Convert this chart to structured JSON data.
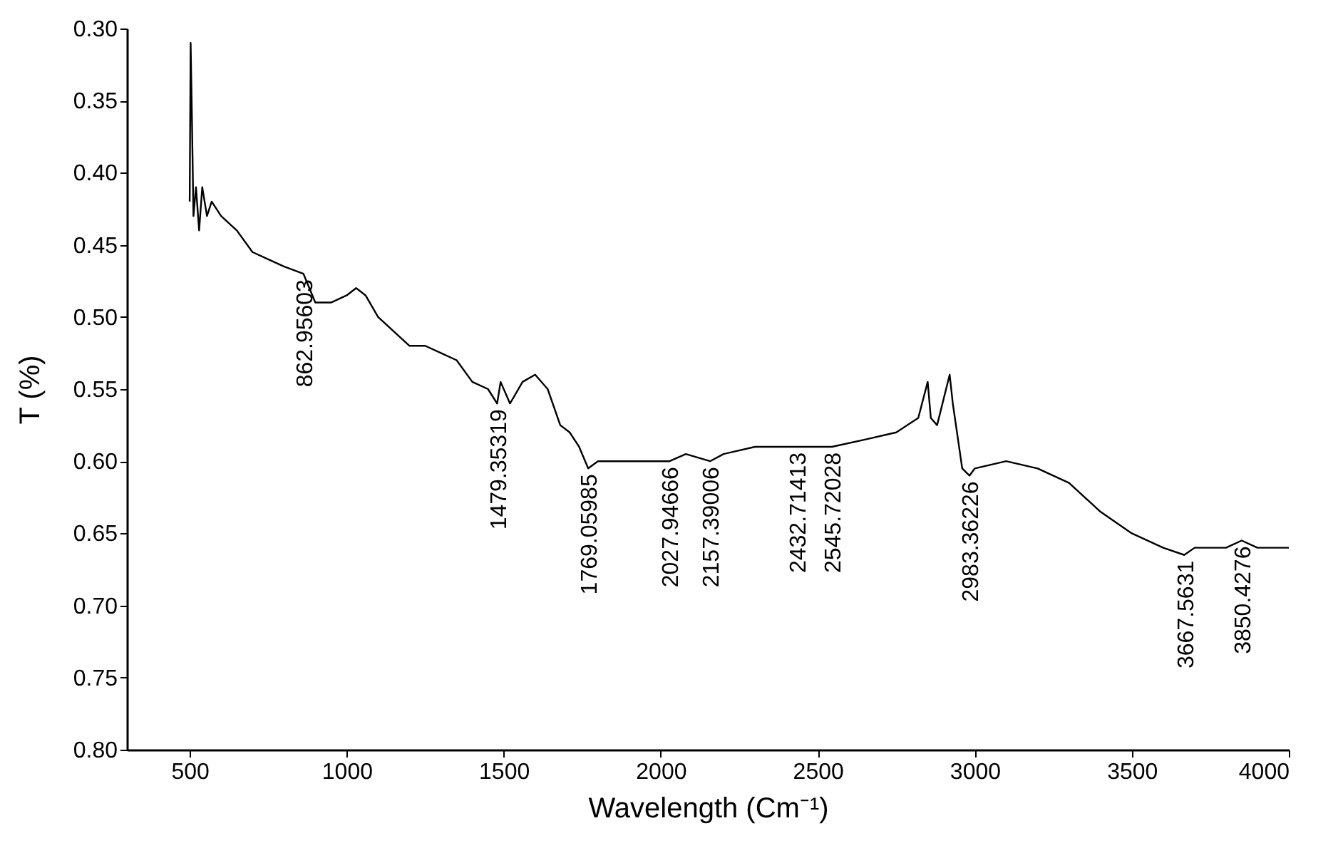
{
  "chart_data": {
    "type": "line",
    "xlabel": "Wavelength (Cm⁻¹)",
    "ylabel": "T (%)",
    "xlim": [
      300,
      4000
    ],
    "xticks": [
      500,
      1000,
      1500,
      2000,
      2500,
      3000,
      3500,
      4000
    ],
    "ylim": [
      0.8,
      0.3
    ],
    "yticks": [
      {
        "value": 0.3,
        "label": "0.30"
      },
      {
        "value": 0.35,
        "label": "0.35"
      },
      {
        "value": 0.4,
        "label": "0.40"
      },
      {
        "value": 0.45,
        "label": "0.45"
      },
      {
        "value": 0.5,
        "label": "0.50"
      },
      {
        "value": 0.55,
        "label": "0.55"
      },
      {
        "value": 0.6,
        "label": "0.60"
      },
      {
        "value": 0.65,
        "label": "0.65"
      },
      {
        "value": 0.7,
        "label": "0.70"
      },
      {
        "value": 0.75,
        "label": "0.75"
      },
      {
        "value": 0.8,
        "label": "0.80"
      }
    ],
    "grid": false,
    "marker": "none",
    "line_style": "solid",
    "series": [
      {
        "color": "#000000",
        "x": [
          500,
          503,
          507,
          512,
          520,
          530,
          540,
          555,
          570,
          600,
          650,
          700,
          750,
          800,
          862,
          900,
          950,
          1000,
          1030,
          1060,
          1100,
          1150,
          1200,
          1250,
          1300,
          1350,
          1400,
          1450,
          1479,
          1490,
          1520,
          1560,
          1600,
          1640,
          1680,
          1710,
          1740,
          1769,
          1800,
          1900,
          2000,
          2028,
          2080,
          2157,
          2200,
          2300,
          2432,
          2545,
          2650,
          2750,
          2820,
          2850,
          2860,
          2880,
          2920,
          2930,
          2960,
          2983,
          3000,
          3100,
          3200,
          3300,
          3400,
          3500,
          3600,
          3667,
          3700,
          3800,
          3850,
          3900,
          4000
        ],
        "values": [
          0.42,
          0.31,
          0.36,
          0.43,
          0.41,
          0.44,
          0.41,
          0.43,
          0.42,
          0.43,
          0.44,
          0.455,
          0.46,
          0.465,
          0.47,
          0.49,
          0.49,
          0.485,
          0.48,
          0.485,
          0.5,
          0.51,
          0.52,
          0.52,
          0.525,
          0.53,
          0.545,
          0.55,
          0.56,
          0.545,
          0.56,
          0.545,
          0.54,
          0.55,
          0.575,
          0.58,
          0.59,
          0.605,
          0.6,
          0.6,
          0.6,
          0.6,
          0.595,
          0.6,
          0.595,
          0.59,
          0.59,
          0.59,
          0.585,
          0.58,
          0.57,
          0.545,
          0.57,
          0.575,
          0.54,
          0.56,
          0.605,
          0.61,
          0.605,
          0.6,
          0.605,
          0.615,
          0.635,
          0.65,
          0.66,
          0.665,
          0.66,
          0.66,
          0.655,
          0.66,
          0.66
        ]
      }
    ],
    "annotations": [
      {
        "text": "862.95603",
        "x": 862.95603,
        "y": 0.47
      },
      {
        "text": "1479.35319",
        "x": 1479.35319,
        "y": 0.56
      },
      {
        "text": "1769.05985",
        "x": 1769.05985,
        "y": 0.605
      },
      {
        "text": "2027.94666",
        "x": 2027.94666,
        "y": 0.6
      },
      {
        "text": "2157.39006",
        "x": 2157.39006,
        "y": 0.6
      },
      {
        "text": "2432.71413",
        "x": 2432.71413,
        "y": 0.59
      },
      {
        "text": "2545.72028",
        "x": 2545.72028,
        "y": 0.59
      },
      {
        "text": "2983.36226",
        "x": 2983.36226,
        "y": 0.61
      },
      {
        "text": "3667.5631",
        "x": 3667.5631,
        "y": 0.665
      },
      {
        "text": "3850.4276",
        "x": 3850.4276,
        "y": 0.655
      }
    ]
  }
}
